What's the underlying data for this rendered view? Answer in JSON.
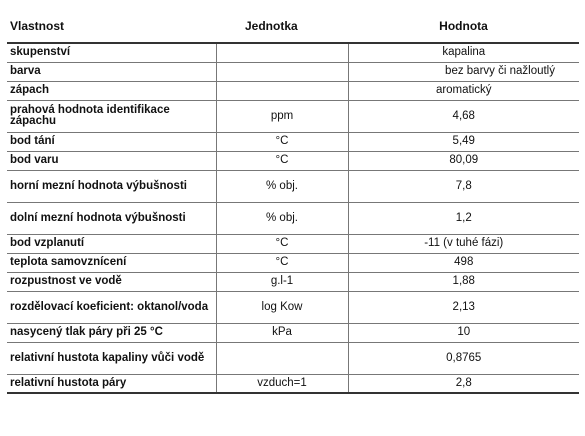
{
  "table": {
    "headers": [
      "Vlastnost",
      "Jednotka",
      "Hodnota"
    ],
    "rows": [
      {
        "name": "skupenství",
        "unit": "",
        "value": "kapalina",
        "tall": false
      },
      {
        "name": "barva",
        "unit": "",
        "value": "bez barvy či nažloutlý",
        "tall": false,
        "right": true
      },
      {
        "name": "zápach",
        "unit": "",
        "value": "aromatický",
        "tall": false
      },
      {
        "name": "prahová hodnota identifikace zápachu",
        "unit": "ppm",
        "value": "4,68",
        "tall": true
      },
      {
        "name": "bod tání",
        "unit": "°C",
        "value": "5,49",
        "tall": false
      },
      {
        "name": "bod varu",
        "unit": "°C",
        "value": "80,09",
        "tall": false
      },
      {
        "name": "horní mezní hodnota výbušnosti",
        "unit": "% obj.",
        "value": "7,8",
        "tall": true
      },
      {
        "name": "dolní mezní hodnota výbušnosti",
        "unit": "% obj.",
        "value": "1,2",
        "tall": true
      },
      {
        "name": "bod vzplanutí",
        "unit": "°C",
        "value": "-11 (v tuhé fázi)",
        "tall": false
      },
      {
        "name": "teplota samovznícení",
        "unit": "°C",
        "value": "498",
        "tall": false
      },
      {
        "name": "rozpustnost ve vodě",
        "unit": "g.l-1",
        "value": "1,88",
        "tall": false
      },
      {
        "name": "rozdělovací koeficient: oktanol/voda",
        "unit": "log Kow",
        "value": "2,13",
        "tall": true
      },
      {
        "name": "nasycený tlak páry při 25 °C",
        "unit": "kPa",
        "value": "10",
        "tall": false
      },
      {
        "name": "relativní hustota kapaliny vůči vodě",
        "unit": "",
        "value": "0,8765",
        "tall": true
      },
      {
        "name": "relativní hustota páry",
        "unit": "vzduch=1",
        "value": "2,8",
        "tall": false
      }
    ]
  }
}
